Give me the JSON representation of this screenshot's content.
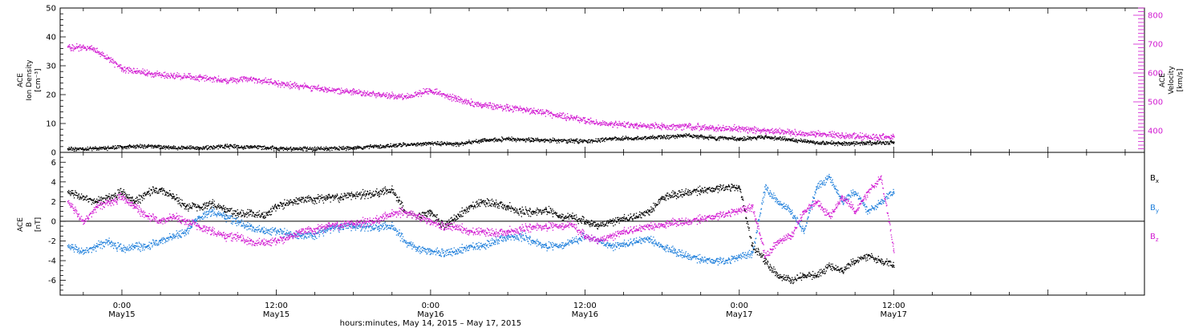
{
  "chart_data": [
    {
      "type": "scatter",
      "panel": "ion-density-velocity",
      "ylabel": [
        "ACE",
        "Ion Density",
        "[cm⁻³]"
      ],
      "ylabel_right": [
        "ACE",
        "Velocity",
        "[km/s]"
      ],
      "ylim": [
        0,
        50
      ],
      "y_ticks": [
        0,
        10,
        20,
        30,
        40,
        50
      ],
      "ylim_right": [
        325,
        825
      ],
      "y_ticks_right": [
        400,
        500,
        600,
        700,
        800
      ],
      "grid": false,
      "series": [
        {
          "color": "#000000",
          "axis": "left",
          "x_hours": [
            -4.2,
            -2,
            0,
            2,
            4,
            6,
            8,
            10,
            12,
            14,
            16,
            18,
            20,
            22,
            24,
            26,
            28,
            30,
            32,
            34,
            36,
            38,
            40,
            42,
            44,
            46,
            48,
            50,
            52,
            54,
            56,
            58,
            60
          ],
          "values": [
            1.2,
            1.5,
            2.0,
            2.3,
            1.8,
            1.6,
            2.2,
            2.0,
            1.5,
            1.4,
            1.5,
            1.7,
            2.2,
            2.8,
            3.3,
            3.0,
            4.2,
            4.8,
            4.5,
            4.2,
            4.0,
            4.8,
            5.0,
            5.5,
            6.0,
            5.2,
            4.8,
            5.5,
            4.5,
            3.5,
            3.2,
            3.4,
            3.6
          ]
        },
        {
          "color": "#d21bd2",
          "axis": "right",
          "x_hours": [
            -4.2,
            -2.5,
            -1,
            0,
            2,
            4,
            6,
            8,
            10,
            12,
            14,
            16,
            18,
            20,
            22,
            24,
            26,
            28,
            30,
            32,
            34,
            36,
            38,
            40,
            42,
            44,
            46,
            48,
            50,
            52,
            54,
            56,
            58,
            60
          ],
          "values": [
            690,
            690,
            650,
            615,
            600,
            590,
            585,
            575,
            580,
            565,
            555,
            545,
            535,
            525,
            518,
            540,
            510,
            490,
            480,
            470,
            455,
            435,
            425,
            420,
            415,
            415,
            410,
            410,
            400,
            395,
            390,
            385,
            380,
            380
          ]
        }
      ]
    },
    {
      "type": "scatter",
      "panel": "magnetic-field",
      "ylabel": [
        "ACE",
        "B",
        "[nT]"
      ],
      "ylim": [
        -7.5,
        7
      ],
      "y_ticks": [
        -6,
        -4,
        -2,
        0,
        2,
        4,
        6
      ],
      "grid": false,
      "zero_line": true,
      "series": [
        {
          "name": "Bₓ",
          "color": "#000000",
          "x_hours": [
            -4.2,
            -3,
            -2,
            -1,
            0,
            1,
            2,
            3,
            4,
            5,
            6,
            7,
            8,
            9,
            10,
            11,
            12,
            13,
            14,
            15,
            16,
            17,
            18,
            19,
            20,
            21,
            22,
            23,
            24,
            25,
            26,
            27,
            28,
            29,
            30,
            31,
            32,
            33,
            34,
            35,
            36,
            37,
            38,
            39,
            40,
            41,
            42,
            43,
            44,
            45,
            46,
            47,
            48,
            49,
            50,
            51,
            52,
            53,
            54,
            55,
            56,
            57,
            58,
            59,
            60
          ],
          "values": [
            3.0,
            2.5,
            2.0,
            2.5,
            3.0,
            2.0,
            3.0,
            3.2,
            2.5,
            1.5,
            1.5,
            1.8,
            1.2,
            0.8,
            1.0,
            0.5,
            1.5,
            2.0,
            2.2,
            2.3,
            2.4,
            2.5,
            2.7,
            2.8,
            3.0,
            3.2,
            1.0,
            0.5,
            1.0,
            -0.5,
            0.5,
            1.5,
            2.0,
            1.8,
            1.5,
            1.0,
            1.0,
            1.2,
            0.5,
            0.5,
            0.0,
            -0.5,
            0.0,
            0.3,
            0.5,
            1.0,
            2.5,
            2.8,
            3.0,
            3.2,
            3.3,
            3.5,
            3.5,
            -2.5,
            -4.0,
            -5.5,
            -6.0,
            -5.5,
            -5.5,
            -4.5,
            -5.0,
            -4.0,
            -3.5,
            -4.0,
            -4.5
          ]
        },
        {
          "name": "Bᵧ",
          "color": "#1f7fdb",
          "x_hours": [
            -4.2,
            -3,
            -2,
            -1,
            0,
            1,
            2,
            3,
            4,
            5,
            6,
            7,
            8,
            9,
            10,
            11,
            12,
            13,
            14,
            15,
            16,
            17,
            18,
            19,
            20,
            21,
            22,
            23,
            24,
            25,
            26,
            27,
            28,
            29,
            30,
            31,
            32,
            33,
            34,
            35,
            36,
            37,
            38,
            39,
            40,
            41,
            42,
            43,
            44,
            45,
            46,
            47,
            48,
            49,
            50,
            51,
            52,
            53,
            54,
            55,
            56,
            57,
            58,
            59,
            60
          ],
          "values": [
            -2.5,
            -3.0,
            -2.5,
            -2.0,
            -2.8,
            -2.5,
            -2.5,
            -2.0,
            -1.5,
            -1.0,
            0.5,
            1.0,
            0.5,
            0.0,
            -0.5,
            -1.0,
            -1.0,
            -1.2,
            -1.5,
            -1.3,
            -0.8,
            -0.5,
            -0.5,
            -0.5,
            -0.5,
            -0.5,
            -2.0,
            -2.8,
            -3.0,
            -3.2,
            -3.0,
            -2.5,
            -2.5,
            -2.0,
            -1.5,
            -1.5,
            -2.0,
            -2.5,
            -2.5,
            -2.0,
            -1.5,
            -2.0,
            -2.5,
            -2.3,
            -2.0,
            -1.8,
            -2.5,
            -3.0,
            -3.5,
            -3.8,
            -4.0,
            -4.0,
            -3.5,
            -3.2,
            3.5,
            2.0,
            1.0,
            -1.0,
            3.5,
            4.5,
            2.0,
            3.0,
            1.0,
            2.0,
            3.0
          ]
        },
        {
          "name": "Bᶻ",
          "color": "#d21bd2",
          "x_hours": [
            -4.2,
            -3,
            -2,
            -1,
            0,
            1,
            2,
            3,
            4,
            5,
            6,
            7,
            8,
            9,
            10,
            11,
            12,
            13,
            14,
            15,
            16,
            17,
            18,
            19,
            20,
            21,
            22,
            23,
            24,
            25,
            26,
            27,
            28,
            29,
            30,
            31,
            32,
            33,
            34,
            35,
            36,
            37,
            38,
            39,
            40,
            41,
            42,
            43,
            44,
            45,
            46,
            47,
            48,
            49,
            50,
            51,
            52,
            53,
            54,
            55,
            56,
            57,
            58,
            59,
            60
          ],
          "values": [
            2.0,
            0.0,
            1.5,
            2.0,
            2.5,
            1.5,
            0.5,
            0.0,
            0.5,
            0.0,
            -0.5,
            -1.0,
            -1.5,
            -1.5,
            -2.0,
            -2.2,
            -2.0,
            -1.5,
            -1.0,
            -0.8,
            -0.5,
            -0.3,
            -0.2,
            0.0,
            0.3,
            0.8,
            1.0,
            0.5,
            0.0,
            -0.5,
            -0.5,
            -1.0,
            -1.0,
            -1.2,
            -1.0,
            -0.8,
            -0.5,
            -0.5,
            -0.5,
            -0.3,
            -1.5,
            -2.0,
            -1.5,
            -1.0,
            -0.8,
            -0.5,
            -0.3,
            0.0,
            0.0,
            0.3,
            0.5,
            0.8,
            1.2,
            1.5,
            -3.5,
            -2.0,
            -1.5,
            1.0,
            2.0,
            0.5,
            2.5,
            1.0,
            3.0,
            4.5,
            -3.0
          ]
        }
      ]
    }
  ],
  "x_axis": {
    "xlim_hours": [
      -4.8,
      79.5
    ],
    "ticks": [
      {
        "hours": 0,
        "time": "0:00",
        "date": "May15"
      },
      {
        "hours": 12,
        "time": "12:00",
        "date": "May15"
      },
      {
        "hours": 24,
        "time": "0:00",
        "date": "May16"
      },
      {
        "hours": 36,
        "time": "12:00",
        "date": "May16"
      },
      {
        "hours": 48,
        "time": "0:00",
        "date": "May17"
      },
      {
        "hours": 60,
        "time": "12:00",
        "date": "May17"
      }
    ],
    "label": "hours:minutes, May 14, 2015 – May 17, 2015"
  },
  "legend": {
    "placement": "right",
    "items": [
      {
        "base": "B",
        "sub": "x",
        "color": "#000000"
      },
      {
        "base": "B",
        "sub": "y",
        "color": "#1f7fdb"
      },
      {
        "base": "B",
        "sub": "z",
        "color": "#d21bd2"
      }
    ]
  }
}
